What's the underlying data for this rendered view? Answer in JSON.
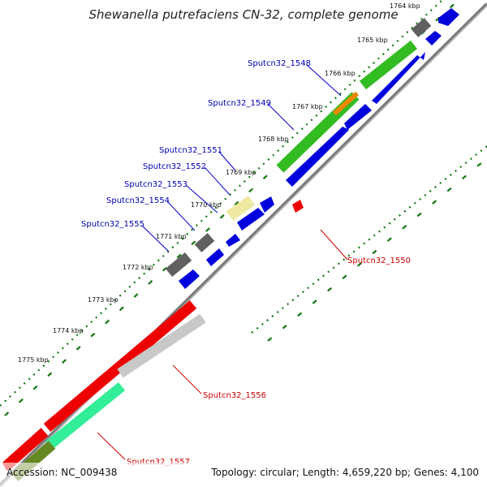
{
  "title": "Shewanella putrefaciens CN-32, complete genome",
  "footer": {
    "accession": "Accession: NC_009438",
    "summary": "Topology: circular; Length: 4,659,220 bp; Genes: 4,100"
  },
  "kbp_labels": [
    "1764 kbp",
    "1765 kbp",
    "1766 kbp",
    "1767 kbp",
    "1768 kbp",
    "1769 kbp",
    "1770 kbp",
    "1771 kbp",
    "1772 kbp",
    "1773 kbp",
    "1774 kbp",
    "1775 kbp"
  ],
  "gene_labels_forward": [
    "Sputcn32_1548",
    "Sputcn32_1549",
    "Sputcn32_1551",
    "Sputcn32_1552",
    "Sputcn32_1553",
    "Sputcn32_1554",
    "Sputcn32_1555"
  ],
  "gene_labels_reverse": [
    "Sputcn32_1550",
    "Sputcn32_1556",
    "Sputcn32_1557"
  ],
  "colors": {
    "forward_label": "#0000aa",
    "reverse_label": "#cc0000",
    "cds_forward": "#0000dd",
    "cds_reverse": "#ee0000",
    "gene_green": "#33bb22",
    "gene_orange": "#ee8800",
    "gene_gray": "#606060",
    "gene_pale_yellow": "#eee8a0",
    "gene_silver": "#c8c8c8",
    "gene_mint": "#33ee99",
    "gene_olive": "#668822",
    "backbone": "#808080",
    "tick_green": "#117711"
  }
}
